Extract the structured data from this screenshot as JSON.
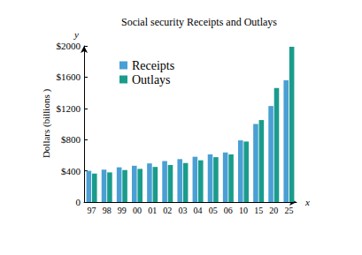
{
  "chart_data": {
    "type": "bar",
    "title": "Social security Receipts and Outlays",
    "xlabel": "x",
    "ylabel": "Dollars (billions )",
    "ylabel_top": "y",
    "categories": [
      "97",
      "98",
      "99",
      "00",
      "01",
      "02",
      "03",
      "04",
      "05",
      "06",
      "10",
      "15",
      "20",
      "25"
    ],
    "series": [
      {
        "name": "Receipts",
        "color": "#4a9fd4",
        "values": [
          400,
          415,
          445,
          465,
          495,
          525,
          550,
          580,
          610,
          635,
          790,
          1000,
          1230,
          1560
        ]
      },
      {
        "name": "Outlays",
        "color": "#1a9c8c",
        "values": [
          365,
          380,
          410,
          425,
          450,
          475,
          500,
          535,
          575,
          610,
          775,
          1050,
          1460,
          1990
        ]
      }
    ],
    "ylim": [
      0,
      2000
    ],
    "yticks": [
      0,
      {
        "value": 400,
        "label": "$400"
      },
      {
        "value": 800,
        "label": "$800"
      },
      {
        "value": 1200,
        "label": "$1200"
      },
      {
        "value": 1600,
        "label": "$1600"
      },
      {
        "value": 2000,
        "label": "$2000"
      }
    ],
    "grid": false,
    "legend": "upper left"
  }
}
